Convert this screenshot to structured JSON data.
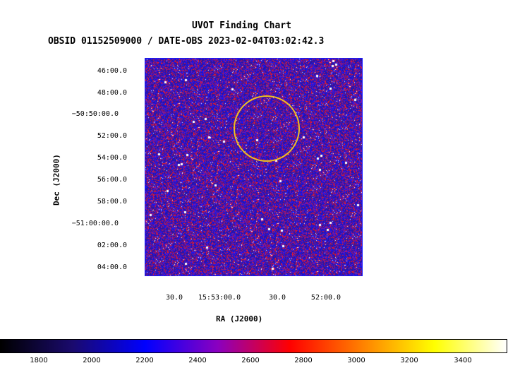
{
  "chart_data": {
    "type": "heatmap",
    "title": "UVOT Finding Chart",
    "subtitle": "OBSID 01152509000 / DATE-OBS 2023-02-04T03:02:42.3",
    "xlabel": "RA (J2000)",
    "ylabel": "Dec (J2000)",
    "x_ticks": [
      "30.0",
      "15:53:00.0",
      "30.0",
      "52:00.0"
    ],
    "y_ticks": [
      "46:00.0",
      "48:00.0",
      "−50:50:00.0",
      "52:00.0",
      "54:00.0",
      "56:00.0",
      "58:00.0",
      "−51:00:00.0",
      "02:00.0",
      "04:00.0"
    ],
    "colorbar": {
      "ticks": [
        "1800",
        "2000",
        "2200",
        "2400",
        "2600",
        "2800",
        "3000",
        "3200",
        "3400"
      ],
      "range": [
        1650,
        3550
      ],
      "colormap": [
        "#000000",
        "#1a0a6e",
        "#0000ff",
        "#8a00c0",
        "#ff0000",
        "#ff8000",
        "#ffff00",
        "#ffffff"
      ]
    },
    "overlay": {
      "shape": "circle",
      "color": "#f0c020"
    }
  }
}
